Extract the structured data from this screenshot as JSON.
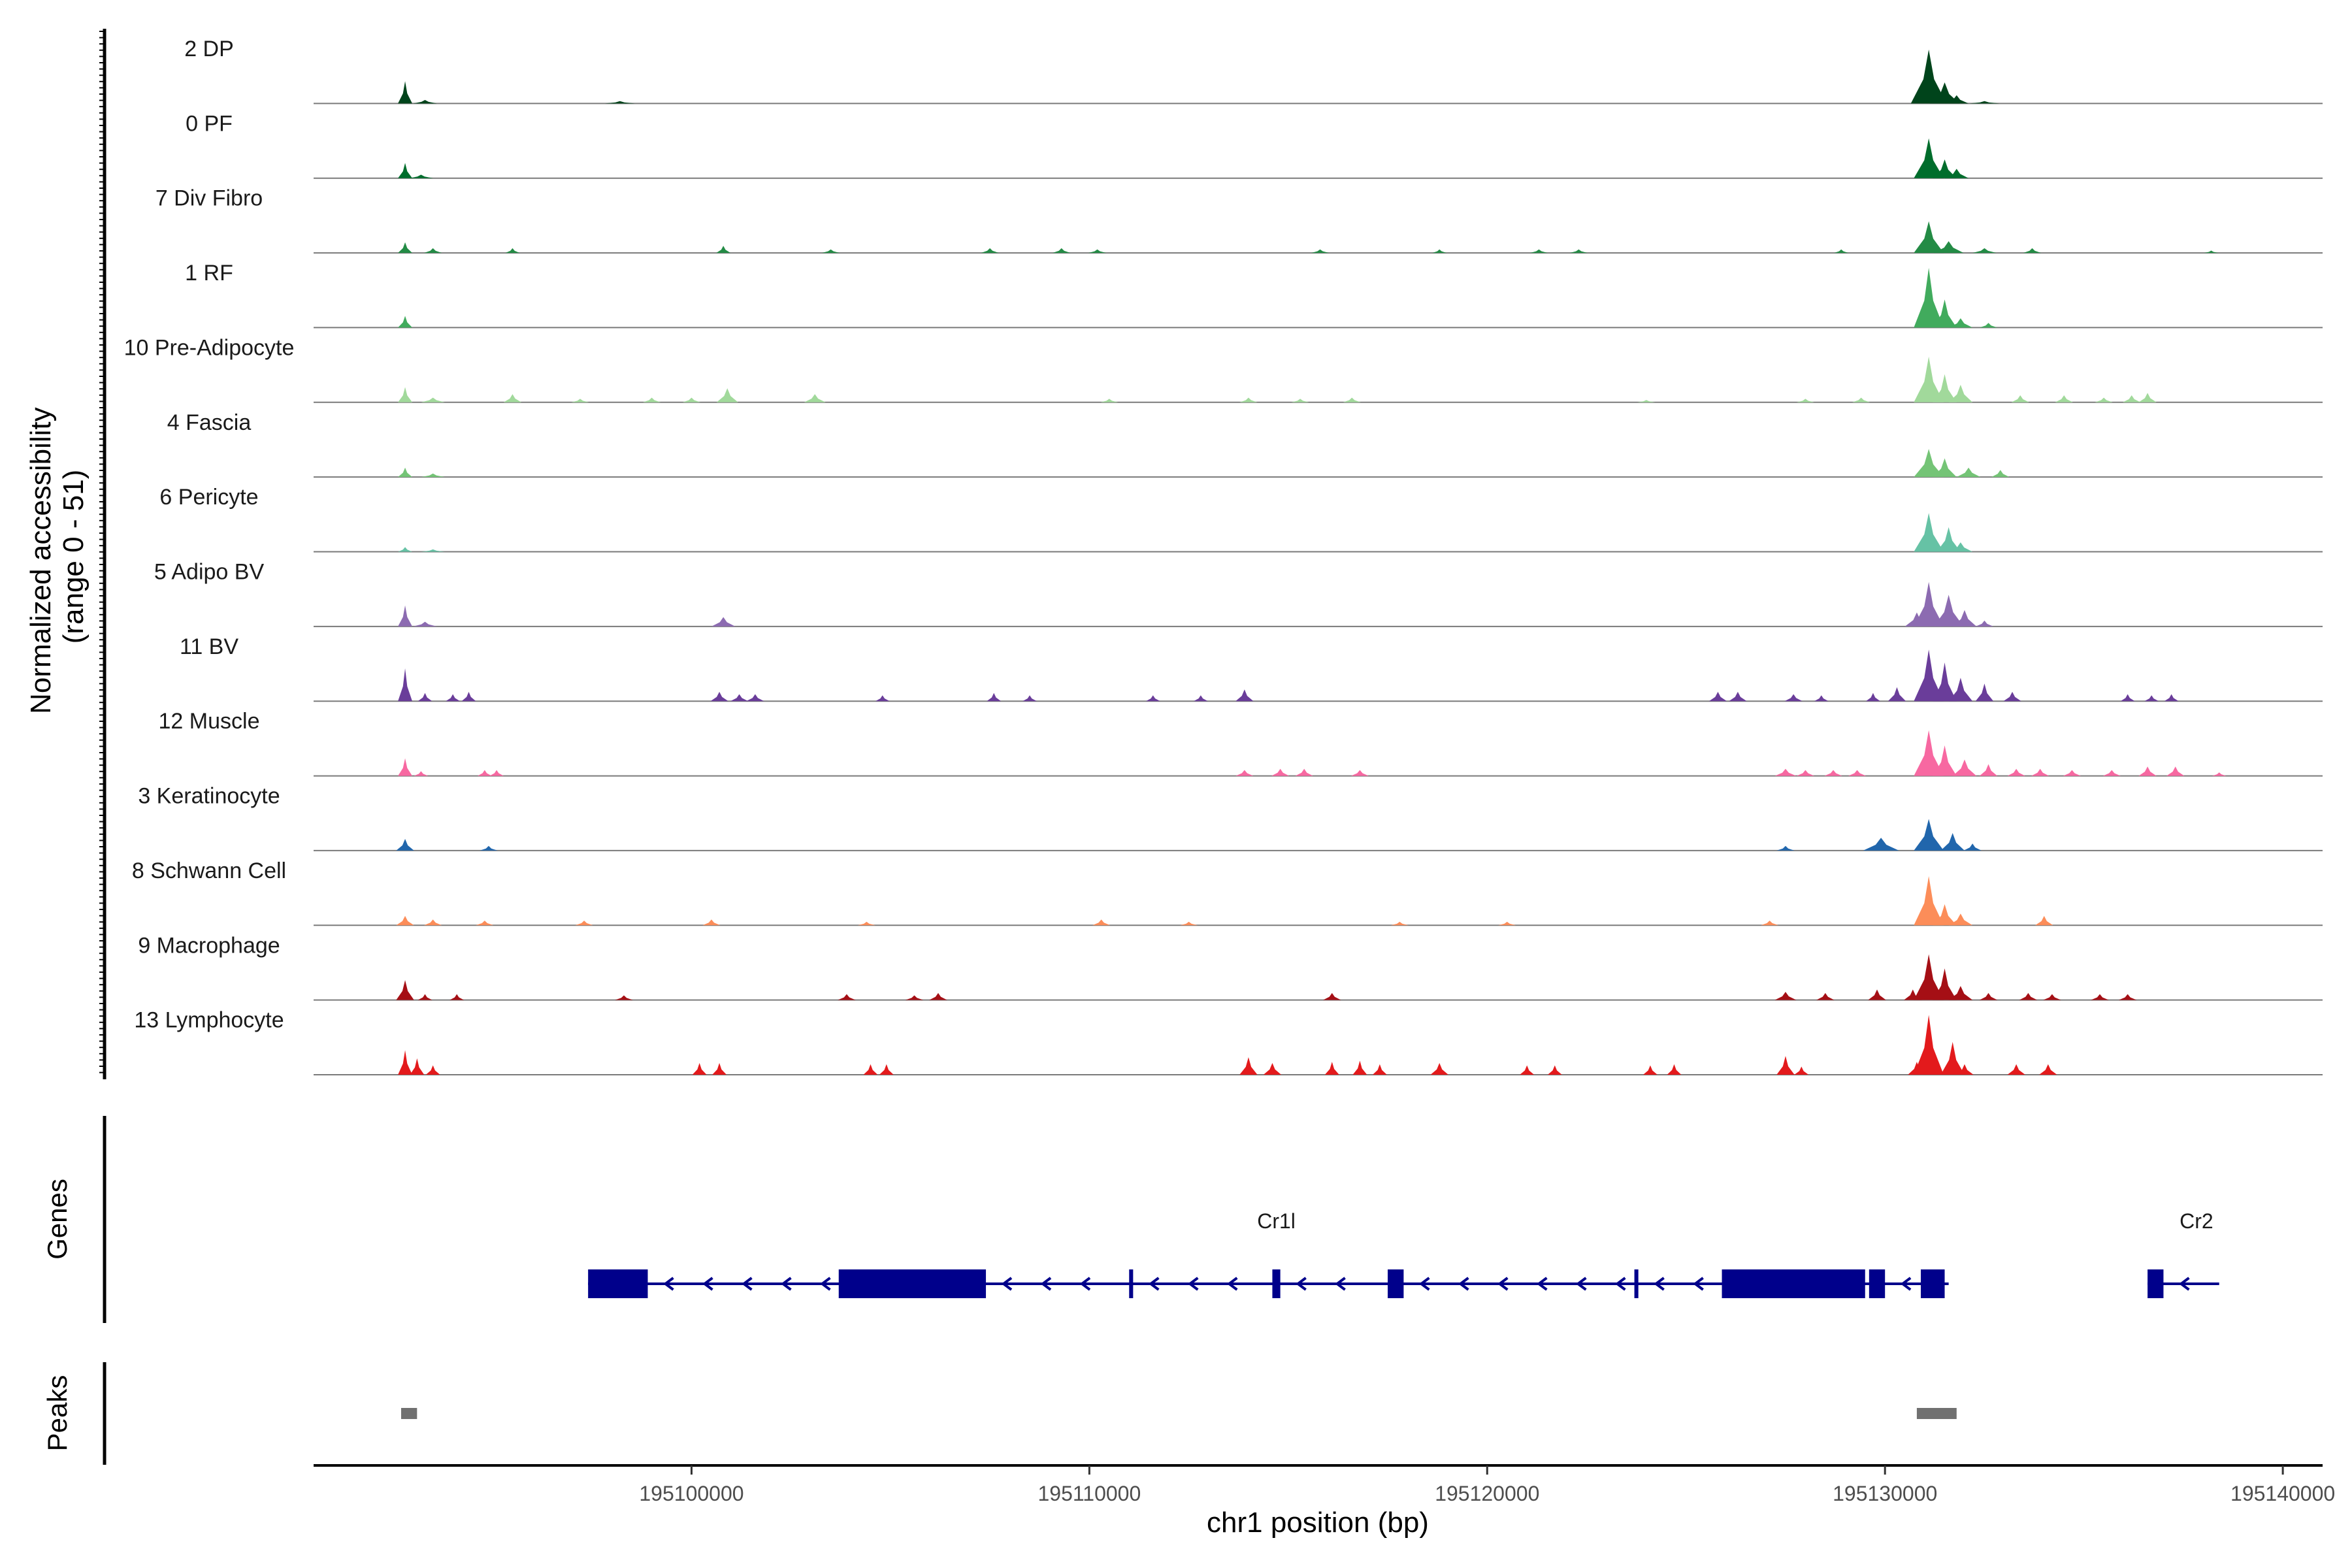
{
  "chart_data": {
    "type": "area",
    "title": "",
    "ylabel_line1": "Normalized accessibility",
    "ylabel_line2": "(range 0 - 51)",
    "ylim": [
      0,
      51
    ],
    "xlabel": "chr1 position (bp)",
    "xlim": [
      195090500,
      195141000
    ],
    "xticks": [
      195100000,
      195110000,
      195120000,
      195130000,
      195140000
    ],
    "xtick_labels": [
      "195100000",
      "195110000",
      "195120000",
      "195130000",
      "195140000"
    ],
    "tracks": [
      {
        "name": "2 DP",
        "color": "#00441b",
        "peaks": [
          [
            195092800,
            19,
            120
          ],
          [
            195093300,
            3,
            200
          ],
          [
            195098200,
            2,
            250
          ],
          [
            195131100,
            46,
            300
          ],
          [
            195131500,
            18,
            250
          ],
          [
            195131800,
            7,
            200
          ],
          [
            195132500,
            2,
            250
          ]
        ]
      },
      {
        "name": "0 PF",
        "color": "#006d2c",
        "peaks": [
          [
            195092800,
            13,
            120
          ],
          [
            195093200,
            3,
            200
          ],
          [
            195131100,
            34,
            250
          ],
          [
            195131500,
            16,
            200
          ],
          [
            195131800,
            8,
            200
          ]
        ]
      },
      {
        "name": "7 Div Fibro",
        "color": "#238b45",
        "peaks": [
          [
            195092800,
            9,
            120
          ],
          [
            195093500,
            4,
            150
          ],
          [
            195095500,
            4,
            120
          ],
          [
            195100800,
            6,
            120
          ],
          [
            195103500,
            3,
            150
          ],
          [
            195107500,
            4,
            150
          ],
          [
            195109300,
            4,
            150
          ],
          [
            195110200,
            3,
            150
          ],
          [
            195115800,
            3,
            150
          ],
          [
            195118800,
            3,
            120
          ],
          [
            195121300,
            3,
            150
          ],
          [
            195122300,
            3,
            150
          ],
          [
            195128900,
            3,
            120
          ],
          [
            195131100,
            27,
            250
          ],
          [
            195131600,
            10,
            250
          ],
          [
            195132500,
            4,
            200
          ],
          [
            195133700,
            4,
            150
          ],
          [
            195138200,
            2,
            120
          ]
        ]
      },
      {
        "name": "1 RF",
        "color": "#41ab5d",
        "peaks": [
          [
            195092800,
            10,
            120
          ],
          [
            195131100,
            51,
            250
          ],
          [
            195131500,
            24,
            200
          ],
          [
            195131900,
            8,
            200
          ],
          [
            195132600,
            4,
            150
          ]
        ]
      },
      {
        "name": "10 Pre-Adipocyte",
        "color": "#a1d99b",
        "peaks": [
          [
            195092800,
            13,
            120
          ],
          [
            195093500,
            4,
            200
          ],
          [
            195095500,
            7,
            150
          ],
          [
            195097200,
            3,
            150
          ],
          [
            195099000,
            4,
            150
          ],
          [
            195100000,
            4,
            150
          ],
          [
            195100900,
            12,
            180
          ],
          [
            195103100,
            7,
            180
          ],
          [
            195110500,
            3,
            150
          ],
          [
            195114000,
            4,
            150
          ],
          [
            195115300,
            3,
            150
          ],
          [
            195116600,
            4,
            150
          ],
          [
            195124000,
            2,
            150
          ],
          [
            195128000,
            3,
            150
          ],
          [
            195129400,
            4,
            150
          ],
          [
            195131100,
            39,
            250
          ],
          [
            195131500,
            24,
            200
          ],
          [
            195131900,
            15,
            200
          ],
          [
            195133400,
            6,
            150
          ],
          [
            195134500,
            6,
            150
          ],
          [
            195135500,
            4,
            150
          ],
          [
            195136200,
            6,
            150
          ],
          [
            195136600,
            8,
            150
          ]
        ]
      },
      {
        "name": "4 Fascia",
        "color": "#74c476",
        "peaks": [
          [
            195092800,
            8,
            120
          ],
          [
            195093500,
            3,
            200
          ],
          [
            195131100,
            24,
            250
          ],
          [
            195131500,
            16,
            200
          ],
          [
            195132100,
            8,
            200
          ],
          [
            195132900,
            6,
            150
          ]
        ]
      },
      {
        "name": "6 Pericyte",
        "color": "#66c2a5",
        "peaks": [
          [
            195092800,
            4,
            120
          ],
          [
            195093500,
            2,
            200
          ],
          [
            195131100,
            33,
            250
          ],
          [
            195131600,
            21,
            200
          ],
          [
            195131900,
            8,
            200
          ]
        ]
      },
      {
        "name": "5 Adipo BV",
        "color": "#8c6bb1",
        "peaks": [
          [
            195092800,
            18,
            120
          ],
          [
            195093300,
            4,
            200
          ],
          [
            195100800,
            8,
            200
          ],
          [
            195130800,
            12,
            200
          ],
          [
            195131100,
            38,
            250
          ],
          [
            195131600,
            27,
            250
          ],
          [
            195132000,
            14,
            200
          ],
          [
            195132500,
            5,
            150
          ]
        ]
      },
      {
        "name": "11 BV",
        "color": "#6a3d9a",
        "peaks": [
          [
            195092800,
            28,
            120
          ],
          [
            195093300,
            7,
            120
          ],
          [
            195094000,
            6,
            120
          ],
          [
            195094400,
            8,
            120
          ],
          [
            195100700,
            8,
            150
          ],
          [
            195101200,
            6,
            150
          ],
          [
            195101600,
            6,
            150
          ],
          [
            195104800,
            5,
            120
          ],
          [
            195107600,
            7,
            120
          ],
          [
            195108500,
            5,
            120
          ],
          [
            195111600,
            5,
            120
          ],
          [
            195112800,
            5,
            120
          ],
          [
            195113900,
            10,
            150
          ],
          [
            195125800,
            8,
            150
          ],
          [
            195126300,
            8,
            150
          ],
          [
            195127700,
            6,
            150
          ],
          [
            195128400,
            5,
            120
          ],
          [
            195129700,
            7,
            120
          ],
          [
            195130300,
            12,
            150
          ],
          [
            195131100,
            44,
            250
          ],
          [
            195131500,
            33,
            200
          ],
          [
            195131900,
            20,
            200
          ],
          [
            195132500,
            15,
            150
          ],
          [
            195133200,
            8,
            150
          ],
          [
            195136100,
            6,
            120
          ],
          [
            195136700,
            5,
            120
          ],
          [
            195137200,
            6,
            120
          ]
        ]
      },
      {
        "name": "12 Muscle",
        "color": "#f768a1",
        "peaks": [
          [
            195092800,
            15,
            120
          ],
          [
            195093200,
            4,
            120
          ],
          [
            195094800,
            5,
            120
          ],
          [
            195095100,
            5,
            120
          ],
          [
            195113900,
            5,
            150
          ],
          [
            195114800,
            6,
            150
          ],
          [
            195115400,
            6,
            150
          ],
          [
            195116800,
            5,
            150
          ],
          [
            195127500,
            6,
            180
          ],
          [
            195128000,
            5,
            150
          ],
          [
            195128700,
            5,
            150
          ],
          [
            195129300,
            5,
            150
          ],
          [
            195131100,
            39,
            250
          ],
          [
            195131500,
            26,
            200
          ],
          [
            195132000,
            14,
            200
          ],
          [
            195132600,
            10,
            150
          ],
          [
            195133300,
            6,
            150
          ],
          [
            195133900,
            6,
            150
          ],
          [
            195134700,
            5,
            150
          ],
          [
            195135700,
            5,
            150
          ],
          [
            195136600,
            8,
            150
          ],
          [
            195137300,
            8,
            150
          ],
          [
            195138400,
            3,
            120
          ]
        ]
      },
      {
        "name": "3 Keratinocyte",
        "color": "#2166ac",
        "peaks": [
          [
            195092800,
            10,
            150
          ],
          [
            195094900,
            4,
            150
          ],
          [
            195127500,
            4,
            150
          ],
          [
            195129900,
            11,
            300
          ],
          [
            195131100,
            27,
            250
          ],
          [
            195131700,
            15,
            200
          ],
          [
            195132200,
            6,
            150
          ]
        ]
      },
      {
        "name": "8 Schwann Cell",
        "color": "#fc8d59",
        "peaks": [
          [
            195092800,
            8,
            150
          ],
          [
            195093500,
            5,
            150
          ],
          [
            195094800,
            4,
            150
          ],
          [
            195097300,
            4,
            150
          ],
          [
            195100500,
            5,
            150
          ],
          [
            195104400,
            3,
            150
          ],
          [
            195110300,
            5,
            150
          ],
          [
            195112500,
            3,
            150
          ],
          [
            195117800,
            3,
            150
          ],
          [
            195120500,
            3,
            150
          ],
          [
            195127100,
            4,
            150
          ],
          [
            195131100,
            42,
            250
          ],
          [
            195131500,
            18,
            200
          ],
          [
            195131900,
            10,
            200
          ],
          [
            195134000,
            8,
            150
          ]
        ]
      },
      {
        "name": "9 Macrophage",
        "color": "#a50f15",
        "peaks": [
          [
            195092800,
            17,
            150
          ],
          [
            195093300,
            5,
            120
          ],
          [
            195094100,
            5,
            120
          ],
          [
            195098300,
            4,
            150
          ],
          [
            195103900,
            5,
            150
          ],
          [
            195105600,
            4,
            150
          ],
          [
            195106200,
            6,
            150
          ],
          [
            195116100,
            6,
            150
          ],
          [
            195127500,
            7,
            180
          ],
          [
            195128500,
            6,
            150
          ],
          [
            195129800,
            9,
            150
          ],
          [
            195130700,
            9,
            150
          ],
          [
            195131100,
            39,
            250
          ],
          [
            195131500,
            27,
            200
          ],
          [
            195131900,
            12,
            200
          ],
          [
            195132600,
            6,
            150
          ],
          [
            195133600,
            6,
            150
          ],
          [
            195134200,
            5,
            150
          ],
          [
            195135400,
            5,
            150
          ],
          [
            195136100,
            5,
            150
          ]
        ]
      },
      {
        "name": "13 Lymphocyte",
        "color": "#e31a1c",
        "peaks": [
          [
            195092800,
            21,
            120
          ],
          [
            195093100,
            14,
            120
          ],
          [
            195093500,
            8,
            120
          ],
          [
            195100200,
            10,
            120
          ],
          [
            195100700,
            10,
            120
          ],
          [
            195104500,
            9,
            120
          ],
          [
            195104900,
            9,
            120
          ],
          [
            195114000,
            15,
            150
          ],
          [
            195114600,
            10,
            150
          ],
          [
            195116100,
            11,
            120
          ],
          [
            195116800,
            12,
            120
          ],
          [
            195117300,
            9,
            120
          ],
          [
            195118800,
            10,
            150
          ],
          [
            195121000,
            8,
            120
          ],
          [
            195121700,
            8,
            120
          ],
          [
            195124100,
            8,
            120
          ],
          [
            195124700,
            9,
            120
          ],
          [
            195127500,
            16,
            150
          ],
          [
            195127900,
            7,
            120
          ],
          [
            195130800,
            11,
            150
          ],
          [
            195131100,
            51,
            250
          ],
          [
            195131700,
            28,
            200
          ],
          [
            195132000,
            9,
            150
          ],
          [
            195133300,
            9,
            150
          ],
          [
            195134100,
            9,
            150
          ]
        ]
      }
    ],
    "genes_panel_label": "Genes",
    "genes_color": "#00008b",
    "genes": [
      {
        "name": "Cr1l",
        "start": 195097400,
        "end": 195131600,
        "strand": "-",
        "exons": [
          [
            195097400,
            195098900
          ],
          [
            195103700,
            195107400
          ],
          [
            195111000,
            195111100
          ],
          [
            195114600,
            195114800
          ],
          [
            195117500,
            195117900
          ],
          [
            195123700,
            195123800
          ],
          [
            195125900,
            195129500
          ],
          [
            195129600,
            195130000
          ],
          [
            195130900,
            195131500
          ]
        ]
      },
      {
        "name": "Cr2",
        "start": 195136600,
        "end": 195138400,
        "strand": "-",
        "exons": [
          [
            195136600,
            195137000
          ]
        ]
      }
    ],
    "peaks_panel_label": "Peaks",
    "peaks_color": "#707070",
    "peak_regions": [
      [
        195092700,
        195093100
      ],
      [
        195130800,
        195131800
      ]
    ]
  }
}
